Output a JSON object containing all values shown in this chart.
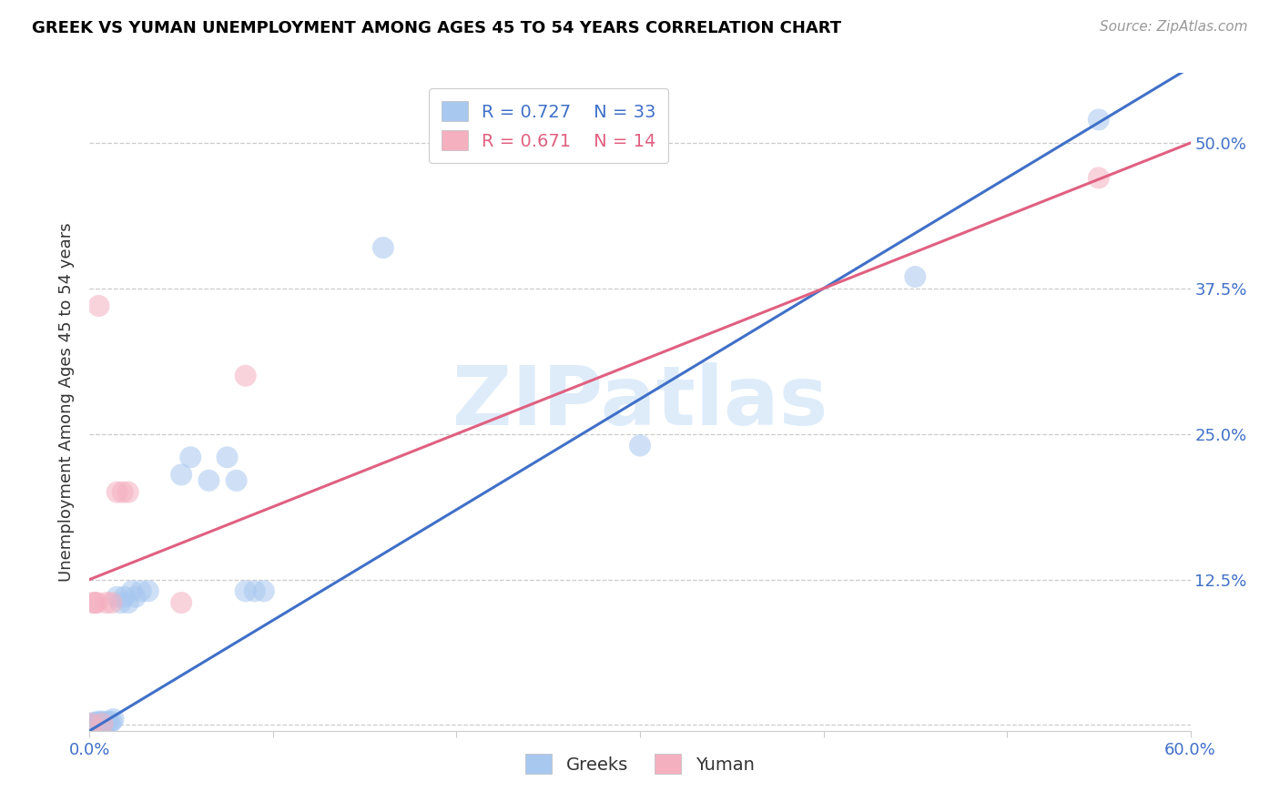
{
  "title": "GREEK VS YUMAN UNEMPLOYMENT AMONG AGES 45 TO 54 YEARS CORRELATION CHART",
  "source": "Source: ZipAtlas.com",
  "ylabel": "Unemployment Among Ages 45 to 54 years",
  "xlim": [
    0.0,
    0.6
  ],
  "ylim": [
    -0.005,
    0.56
  ],
  "xticks": [
    0.0,
    0.1,
    0.2,
    0.3,
    0.4,
    0.5,
    0.6
  ],
  "xtick_labels": [
    "0.0%",
    "",
    "",
    "",
    "",
    "",
    "60.0%"
  ],
  "yticks_right": [
    0.125,
    0.25,
    0.375,
    0.5
  ],
  "ytick_right_labels": [
    "12.5%",
    "25.0%",
    "37.5%",
    "50.0%"
  ],
  "greek_R": 0.727,
  "greek_N": 33,
  "yuman_R": 0.671,
  "yuman_N": 14,
  "greek_color": "#A8C8F0",
  "yuman_color": "#F5B0C0",
  "greek_line_color": "#4070C8",
  "yuman_line_color": "#E06080",
  "watermark": "ZIPatlas",
  "greek_line": [
    0.0,
    -0.005,
    0.6,
    0.565
  ],
  "yuman_line": [
    0.0,
    0.125,
    0.6,
    0.5
  ],
  "greek_x": [
    0.001,
    0.002,
    0.003,
    0.004,
    0.005,
    0.006,
    0.007,
    0.008,
    0.009,
    0.01,
    0.011,
    0.012,
    0.013,
    0.015,
    0.017,
    0.019,
    0.021,
    0.023,
    0.025,
    0.028,
    0.032,
    0.05,
    0.055,
    0.065,
    0.075,
    0.08,
    0.085,
    0.09,
    0.095,
    0.16,
    0.3,
    0.45,
    0.55
  ],
  "greek_y": [
    0.001,
    0.002,
    0.001,
    0.002,
    0.003,
    0.002,
    0.003,
    0.002,
    0.001,
    0.003,
    0.002,
    0.003,
    0.005,
    0.11,
    0.105,
    0.11,
    0.105,
    0.115,
    0.11,
    0.115,
    0.115,
    0.215,
    0.23,
    0.21,
    0.23,
    0.21,
    0.115,
    0.115,
    0.115,
    0.41,
    0.24,
    0.385,
    0.52
  ],
  "yuman_x": [
    0.001,
    0.002,
    0.003,
    0.004,
    0.005,
    0.007,
    0.009,
    0.012,
    0.015,
    0.018,
    0.021,
    0.05,
    0.085,
    0.55
  ],
  "yuman_y": [
    0.001,
    0.105,
    0.105,
    0.105,
    0.36,
    0.001,
    0.105,
    0.105,
    0.2,
    0.2,
    0.2,
    0.105,
    0.3,
    0.47
  ]
}
